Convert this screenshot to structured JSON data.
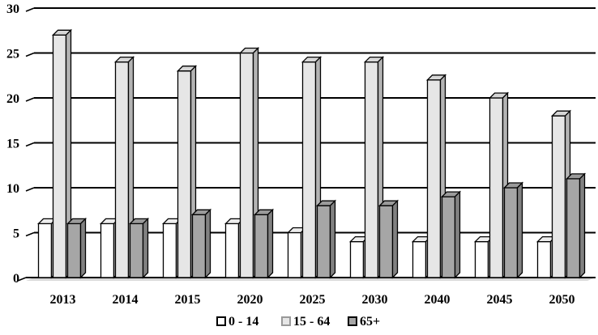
{
  "chart_data": {
    "type": "bar",
    "style": "3d-clustered-column",
    "title": "",
    "xlabel": "",
    "ylabel": "",
    "ylim": [
      0,
      30
    ],
    "yticks": [
      0,
      5,
      10,
      15,
      20,
      25,
      30
    ],
    "grid": true,
    "legend_position": "bottom",
    "categories": [
      "2013",
      "2014",
      "2015",
      "2020",
      "2025",
      "2030",
      "2040",
      "2045",
      "2050"
    ],
    "series": [
      {
        "name": "0 - 14",
        "color": "#ffffff",
        "values": [
          6,
          6,
          6,
          6,
          5,
          4,
          4,
          4,
          4
        ]
      },
      {
        "name": "15 - 64",
        "color": "#e6e6e6",
        "values": [
          27,
          24,
          23,
          25,
          24,
          24,
          22,
          20,
          18
        ]
      },
      {
        "name": "65+",
        "color": "#a6a6a6",
        "values": [
          6,
          6,
          7,
          7,
          8,
          8,
          9,
          10,
          11
        ]
      }
    ]
  }
}
